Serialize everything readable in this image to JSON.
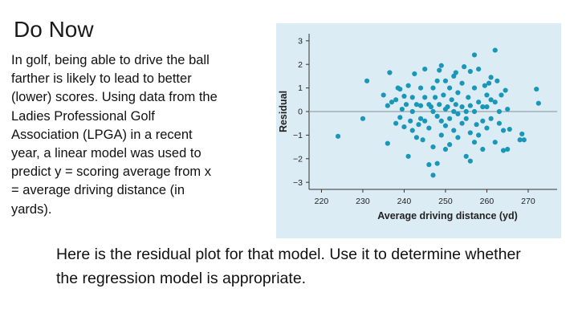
{
  "slide": {
    "title": "Do Now",
    "intro": " In golf, being able to drive the ball\nfarther is likely to lead to better\n(lower) scores. Using data from the\nLadies Professional Golf\nAssociation (LPGA) in a recent\nyear, a linear model was used to\npredict y = scoring average from x\n= average driving distance (in\nyards).",
    "prompt": "Here is the residual plot for that model. Use it to determine whether the regression model is appropriate."
  },
  "colors": {
    "panel_bg": "#dcecf4",
    "point": "#1a97b8",
    "zero_line": "#9aa3a8",
    "axis": "#333333"
  },
  "chart_data": {
    "type": "scatter",
    "xlabel": "Average driving distance (yd)",
    "ylabel": "Residual",
    "xlim": [
      217,
      277
    ],
    "ylim": [
      -3.3,
      3.3
    ],
    "x_ticks": [
      "220",
      "230",
      "240",
      "250",
      "260",
      "270"
    ],
    "y_ticks": [
      "3",
      "2",
      "1",
      "0",
      "−1",
      "−2",
      "−3"
    ],
    "reference_line_y": 0,
    "grid": false,
    "points": [
      [
        224,
        -1.05
      ],
      [
        230,
        -0.3
      ],
      [
        231,
        1.3
      ],
      [
        235,
        0.7
      ],
      [
        236,
        -1.35
      ],
      [
        236,
        0.25
      ],
      [
        236.5,
        1.65
      ],
      [
        237,
        0.4
      ],
      [
        238,
        0.5
      ],
      [
        238,
        -0.5
      ],
      [
        238.5,
        1.0
      ],
      [
        239,
        -0.25
      ],
      [
        239,
        0.95
      ],
      [
        239.5,
        0.1
      ],
      [
        240,
        0.65
      ],
      [
        240,
        -0.65
      ],
      [
        240.5,
        0.3
      ],
      [
        241,
        -1.9
      ],
      [
        241,
        1.1
      ],
      [
        241.5,
        -0.4
      ],
      [
        242,
        0.6
      ],
      [
        242,
        0.0
      ],
      [
        242,
        -0.8
      ],
      [
        242.5,
        1.6
      ],
      [
        243,
        -1.1
      ],
      [
        243,
        0.3
      ],
      [
        243.5,
        -0.55
      ],
      [
        244,
        1.0
      ],
      [
        244,
        0.25
      ],
      [
        244,
        -0.3
      ],
      [
        244.5,
        -1.2
      ],
      [
        245,
        0.6
      ],
      [
        245,
        -0.4
      ],
      [
        245,
        1.8
      ],
      [
        246,
        0.3
      ],
      [
        246,
        -0.7
      ],
      [
        246,
        -2.25
      ],
      [
        246.5,
        0.2
      ],
      [
        247,
        1.0
      ],
      [
        247,
        -1.5
      ],
      [
        247,
        0.0
      ],
      [
        247,
        -2.7
      ],
      [
        247.5,
        0.6
      ],
      [
        248,
        -0.2
      ],
      [
        248,
        1.3
      ],
      [
        248,
        -2.2
      ],
      [
        248.5,
        1.75
      ],
      [
        248.5,
        0.3
      ],
      [
        249,
        1.95
      ],
      [
        249,
        -0.4
      ],
      [
        249,
        -1.0
      ],
      [
        249.5,
        0.7
      ],
      [
        250,
        0.1
      ],
      [
        250,
        -0.6
      ],
      [
        250,
        1.3
      ],
      [
        250,
        -1.6
      ],
      [
        250.5,
        0.2
      ],
      [
        251,
        -0.3
      ],
      [
        251,
        1.0
      ],
      [
        251,
        -1.4
      ],
      [
        251.5,
        0.5
      ],
      [
        252,
        0.0
      ],
      [
        252,
        -0.8
      ],
      [
        252,
        1.5
      ],
      [
        252.5,
        1.65
      ],
      [
        252.5,
        0.3
      ],
      [
        253,
        -0.1
      ],
      [
        253,
        0.8
      ],
      [
        253,
        -1.1
      ],
      [
        254,
        0.2
      ],
      [
        254,
        1.2
      ],
      [
        254,
        -0.5
      ],
      [
        254.5,
        1.9
      ],
      [
        255,
        0.0
      ],
      [
        255,
        -0.3
      ],
      [
        255,
        -1.9
      ],
      [
        255.5,
        0.6
      ],
      [
        256,
        1.7
      ],
      [
        256,
        -2.1
      ],
      [
        256,
        0.25
      ],
      [
        256,
        -0.9
      ],
      [
        257,
        2.4
      ],
      [
        257,
        1.0
      ],
      [
        257,
        0.0
      ],
      [
        257,
        -1.3
      ],
      [
        257.5,
        -0.55
      ],
      [
        258,
        0.4
      ],
      [
        258,
        1.8
      ],
      [
        258,
        -1.0
      ],
      [
        259,
        0.2
      ],
      [
        259,
        -0.4
      ],
      [
        259,
        -1.6
      ],
      [
        259.5,
        1.1
      ],
      [
        260,
        0.7
      ],
      [
        260,
        0.2
      ],
      [
        260,
        -0.7
      ],
      [
        260.5,
        1.2
      ],
      [
        261,
        -0.3
      ],
      [
        261,
        0.5
      ],
      [
        261,
        1.45
      ],
      [
        262,
        2.6
      ],
      [
        262,
        0.4
      ],
      [
        262,
        -1.3
      ],
      [
        262.5,
        1.3
      ],
      [
        263,
        0.0
      ],
      [
        263,
        -0.5
      ],
      [
        263.5,
        0.7
      ],
      [
        264,
        -0.8
      ],
      [
        264,
        -1.65
      ],
      [
        264.5,
        0.9
      ],
      [
        265,
        0.1
      ],
      [
        265,
        -1.6
      ],
      [
        265.5,
        -0.75
      ],
      [
        268,
        -1.2
      ],
      [
        268.5,
        -0.95
      ],
      [
        269,
        -1.2
      ],
      [
        272,
        0.95
      ],
      [
        272.5,
        0.35
      ]
    ]
  }
}
